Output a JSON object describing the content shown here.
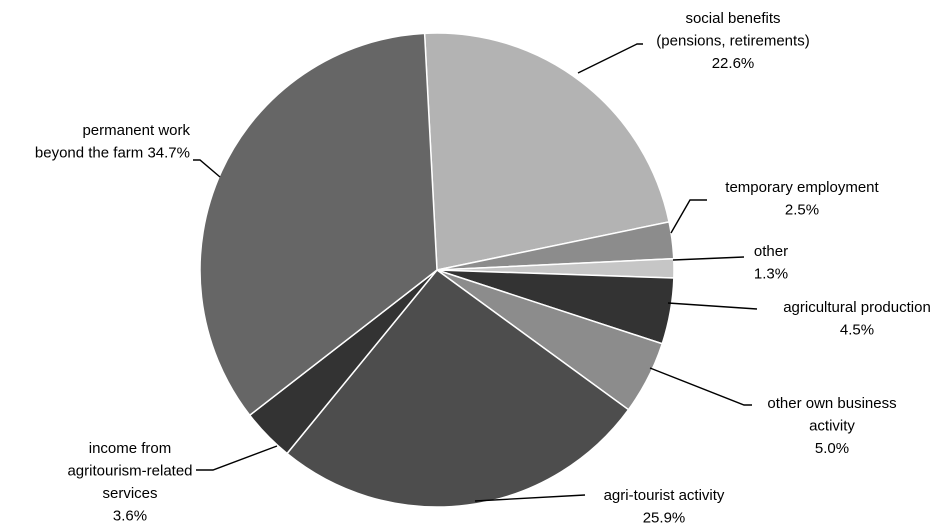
{
  "chart_data": {
    "type": "pie",
    "slices": [
      {
        "label_lines": [
          "social benefits",
          "(pensions, retirements)"
        ],
        "value_text": "22.6%",
        "value": 22.6,
        "color": "#b3b3b3"
      },
      {
        "label_lines": [
          "temporary employment"
        ],
        "value_text": "2.5%",
        "value": 2.5,
        "color": "#8c8c8c"
      },
      {
        "label_lines": [
          "other"
        ],
        "value_text": "1.3%",
        "value": 1.3,
        "color": "#c6c6c6"
      },
      {
        "label_lines": [
          "agricultural production"
        ],
        "value_text": "4.5%",
        "value": 4.5,
        "color": "#333333"
      },
      {
        "label_lines": [
          "other own business",
          "activity"
        ],
        "value_text": "5.0%",
        "value": 5.0,
        "color": "#8c8c8c"
      },
      {
        "label_lines": [
          "agri-tourist activity"
        ],
        "value_text": "25.9%",
        "value": 25.9,
        "color": "#4d4d4d"
      },
      {
        "label_lines": [
          "income from",
          "agritourism-related",
          "services"
        ],
        "value_text": "3.6%",
        "value": 3.6,
        "color": "#333333"
      },
      {
        "label_lines": [
          "permanent work",
          "beyond the farm 34.7%"
        ],
        "value_text": "",
        "value": 34.7,
        "color": "#666666"
      }
    ]
  }
}
